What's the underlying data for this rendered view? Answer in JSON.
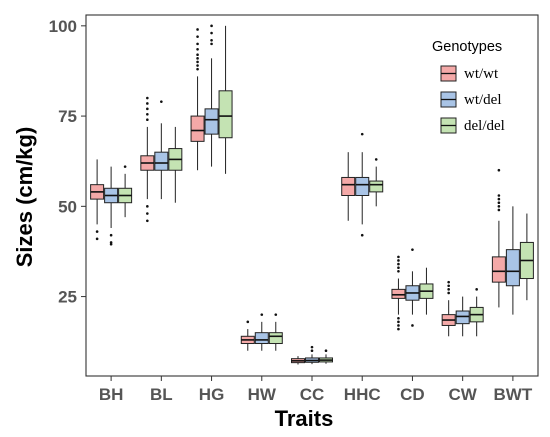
{
  "chart_data": {
    "type": "boxplot",
    "xlabel": "Traits",
    "ylabel": "Sizes (cm/kg)",
    "categories": [
      "BH",
      "BL",
      "HG",
      "HW",
      "CC",
      "HHC",
      "CD",
      "CW",
      "BWT"
    ],
    "y_ticks": [
      25,
      50,
      75,
      100
    ],
    "ylim": [
      3,
      103
    ],
    "grid": false,
    "legend": {
      "title": "Genotypes",
      "placement": "top-right"
    },
    "series": [
      {
        "name": "wt/wt",
        "color": "#f4a9a8",
        "boxes": [
          {
            "q1": 52,
            "median": 54,
            "q3": 56,
            "wlo": 45,
            "whi": 63,
            "outliers": [
              43,
              41
            ]
          },
          {
            "q1": 60,
            "median": 62,
            "q3": 64,
            "wlo": 52,
            "whi": 72,
            "outliers": [
              80,
              78.5,
              77,
              75.5,
              74,
              50,
              48,
              46
            ]
          },
          {
            "q1": 68,
            "median": 71,
            "q3": 75,
            "wlo": 60,
            "whi": 86,
            "outliers": [
              99,
              97,
              95,
              93.5,
              92,
              91,
              90,
              89,
              88
            ]
          },
          {
            "q1": 12,
            "median": 13,
            "q3": 14,
            "wlo": 10,
            "whi": 16,
            "outliers": [
              18
            ]
          },
          {
            "q1": 6.7,
            "median": 7.2,
            "q3": 7.8,
            "wlo": 6.2,
            "whi": 8.5,
            "outliers": []
          },
          {
            "q1": 53,
            "median": 56,
            "q3": 58,
            "wlo": 46,
            "whi": 65,
            "outliers": []
          },
          {
            "q1": 24.5,
            "median": 25.5,
            "q3": 27,
            "wlo": 20,
            "whi": 30,
            "outliers": [
              36,
              35,
              34,
              33,
              32,
              19,
              18,
              17,
              16
            ]
          },
          {
            "q1": 17,
            "median": 18.5,
            "q3": 20,
            "wlo": 14,
            "whi": 24,
            "outliers": [
              29,
              28,
              27,
              26
            ]
          },
          {
            "q1": 29,
            "median": 32,
            "q3": 36,
            "wlo": 22,
            "whi": 46,
            "outliers": [
              60,
              53,
              52,
              51,
              50,
              49
            ]
          }
        ]
      },
      {
        "name": "wt/del",
        "color": "#a9c4e6",
        "boxes": [
          {
            "q1": 51,
            "median": 53,
            "q3": 55,
            "wlo": 44,
            "whi": 61,
            "outliers": [
              42,
              40,
              39.5
            ]
          },
          {
            "q1": 60,
            "median": 62,
            "q3": 65,
            "wlo": 52,
            "whi": 73,
            "outliers": [
              79
            ]
          },
          {
            "q1": 70,
            "median": 74,
            "q3": 77,
            "wlo": 61,
            "whi": 91,
            "outliers": [
              100,
              98,
              96,
              95
            ]
          },
          {
            "q1": 12,
            "median": 13,
            "q3": 15,
            "wlo": 10,
            "whi": 18,
            "outliers": [
              20
            ]
          },
          {
            "q1": 6.8,
            "median": 7.3,
            "q3": 8,
            "wlo": 6.3,
            "whi": 9,
            "outliers": [
              11,
              10
            ]
          },
          {
            "q1": 53,
            "median": 56,
            "q3": 58,
            "wlo": 45,
            "whi": 65,
            "outliers": [
              70,
              42
            ]
          },
          {
            "q1": 24,
            "median": 26,
            "q3": 28,
            "wlo": 20,
            "whi": 32,
            "outliers": [
              38,
              17
            ]
          },
          {
            "q1": 17.5,
            "median": 19.5,
            "q3": 21,
            "wlo": 14,
            "whi": 25,
            "outliers": []
          },
          {
            "q1": 28,
            "median": 32,
            "q3": 38,
            "wlo": 20,
            "whi": 50,
            "outliers": []
          }
        ]
      },
      {
        "name": "del/del",
        "color": "#c4e3b3",
        "boxes": [
          {
            "q1": 51,
            "median": 53,
            "q3": 55,
            "wlo": 47,
            "whi": 59,
            "outliers": [
              61
            ]
          },
          {
            "q1": 60,
            "median": 63,
            "q3": 66,
            "wlo": 51,
            "whi": 72,
            "outliers": []
          },
          {
            "q1": 69,
            "median": 75,
            "q3": 82,
            "wlo": 59,
            "whi": 100,
            "outliers": []
          },
          {
            "q1": 12,
            "median": 14,
            "q3": 15,
            "wlo": 10,
            "whi": 18,
            "outliers": [
              20
            ]
          },
          {
            "q1": 6.9,
            "median": 7.4,
            "q3": 8,
            "wlo": 6.4,
            "whi": 9,
            "outliers": [
              10
            ]
          },
          {
            "q1": 54,
            "median": 56,
            "q3": 57,
            "wlo": 50,
            "whi": 61,
            "outliers": [
              63
            ]
          },
          {
            "q1": 24.5,
            "median": 26.5,
            "q3": 28.5,
            "wlo": 20,
            "whi": 33,
            "outliers": []
          },
          {
            "q1": 18,
            "median": 20,
            "q3": 22,
            "wlo": 14,
            "whi": 25,
            "outliers": [
              27
            ]
          },
          {
            "q1": 30,
            "median": 35,
            "q3": 40,
            "wlo": 24,
            "whi": 48,
            "outliers": []
          }
        ]
      }
    ]
  }
}
